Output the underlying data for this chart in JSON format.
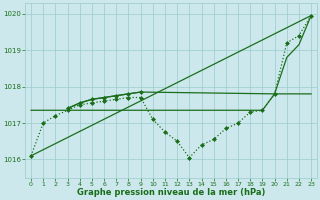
{
  "xlabel": "Graphe pression niveau de la mer (hPa)",
  "bg_color": "#cce8ec",
  "grid_color": "#99cccc",
  "line_color": "#1a6e1a",
  "xlim": [
    -0.5,
    23.5
  ],
  "ylim": [
    1015.5,
    1020.3
  ],
  "yticks": [
    1016,
    1017,
    1018,
    1019,
    1020
  ],
  "xticks": [
    0,
    1,
    2,
    3,
    4,
    5,
    6,
    7,
    8,
    9,
    10,
    11,
    12,
    13,
    14,
    15,
    16,
    17,
    18,
    19,
    20,
    21,
    22,
    23
  ],
  "series": [
    {
      "name": "diagonal_line",
      "x": [
        0,
        23
      ],
      "y": [
        1016.1,
        1019.95
      ],
      "linestyle": "-",
      "linewidth": 0.9,
      "marker": null
    },
    {
      "name": "flat_line",
      "x": [
        0,
        1,
        2,
        3,
        4,
        5,
        6,
        7,
        8,
        9,
        10,
        11,
        12,
        13,
        14,
        15,
        16,
        17,
        18,
        19,
        20,
        21,
        22,
        23
      ],
      "y": [
        1017.35,
        1017.35,
        1017.35,
        1017.35,
        1017.35,
        1017.35,
        1017.35,
        1017.35,
        1017.35,
        1017.35,
        1017.35,
        1017.35,
        1017.35,
        1017.35,
        1017.35,
        1017.35,
        1017.35,
        1017.35,
        1017.35,
        1017.35,
        1017.8,
        1017.8,
        1017.8,
        1017.8
      ],
      "linestyle": "-",
      "linewidth": 0.9,
      "marker": null
    },
    {
      "name": "dotted_markers",
      "x": [
        0,
        1,
        2,
        3,
        4,
        5,
        6,
        7,
        8,
        9,
        10,
        11,
        12,
        13,
        14,
        15,
        16,
        17,
        18,
        19,
        20,
        21,
        22,
        23
      ],
      "y": [
        1016.1,
        1017.0,
        1017.2,
        1017.35,
        1017.5,
        1017.55,
        1017.6,
        1017.65,
        1017.7,
        1017.7,
        1017.1,
        1016.75,
        1016.5,
        1016.05,
        1016.4,
        1016.55,
        1016.85,
        1017.0,
        1017.3,
        1017.35,
        1017.8,
        1019.2,
        1019.4,
        1019.95
      ],
      "linestyle": ":",
      "linewidth": 0.9,
      "marker": "D",
      "markersize": 2.0
    },
    {
      "name": "upper_curve",
      "x": [
        3,
        4,
        5,
        6,
        7,
        8,
        9,
        20,
        21,
        22,
        23
      ],
      "y": [
        1017.4,
        1017.55,
        1017.65,
        1017.7,
        1017.75,
        1017.8,
        1017.85,
        1017.8,
        1018.8,
        1019.15,
        1019.95
      ],
      "linestyle": "-",
      "linewidth": 0.9,
      "marker": null
    },
    {
      "name": "short_markers",
      "x": [
        3,
        4,
        5,
        6,
        7,
        8,
        9
      ],
      "y": [
        1017.4,
        1017.55,
        1017.65,
        1017.7,
        1017.75,
        1017.8,
        1017.85
      ],
      "linestyle": "-",
      "linewidth": 0.9,
      "marker": "D",
      "markersize": 2.0
    }
  ]
}
